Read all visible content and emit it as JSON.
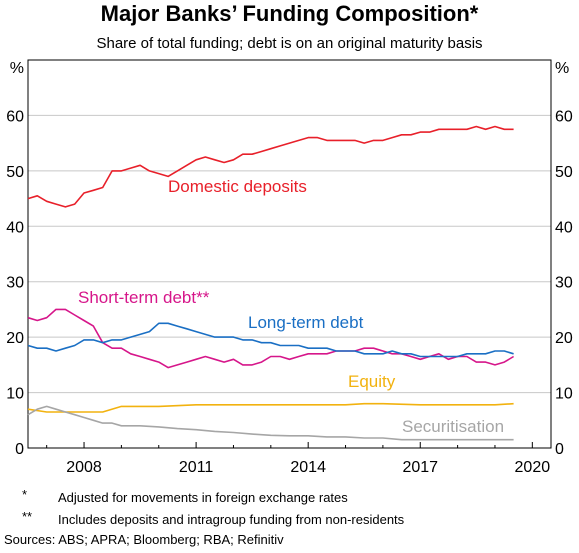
{
  "title": "Major Banks’ Funding Composition*",
  "subtitle": "Share of total funding; debt is on an original maturity basis",
  "footnotes": [
    {
      "mark": "*",
      "text": "Adjusted for movements in foreign exchange rates"
    },
    {
      "mark": "**",
      "text": "Includes deposits and intragroup funding from non-residents"
    }
  ],
  "sources": "Sources: ABS; APRA; Bloomberg; RBA; Refinitiv",
  "chart_data": {
    "type": "line",
    "title": "Major Banks’ Funding Composition*",
    "ylabel_left": "%",
    "ylabel_right": "%",
    "xlim": [
      2006.5,
      2020.5
    ],
    "ylim": [
      0,
      70
    ],
    "x_ticks": [
      2008,
      2011,
      2014,
      2017,
      2020
    ],
    "y_ticks": [
      0,
      10,
      20,
      30,
      40,
      50,
      60
    ],
    "grid": true,
    "series": [
      {
        "name": "Domestic deposits",
        "color": "#e8202a",
        "x": [
          2006.5,
          2006.75,
          2007.0,
          2007.25,
          2007.5,
          2007.75,
          2008.0,
          2008.25,
          2008.5,
          2008.75,
          2009.0,
          2009.25,
          2009.5,
          2009.75,
          2010.0,
          2010.25,
          2010.5,
          2010.75,
          2011.0,
          2011.25,
          2011.5,
          2011.75,
          2012.0,
          2012.25,
          2012.5,
          2012.75,
          2013.0,
          2013.25,
          2013.5,
          2013.75,
          2014.0,
          2014.25,
          2014.5,
          2014.75,
          2015.0,
          2015.25,
          2015.5,
          2015.75,
          2016.0,
          2016.25,
          2016.5,
          2016.75,
          2017.0,
          2017.25,
          2017.5,
          2017.75,
          2018.0,
          2018.25,
          2018.5,
          2018.75,
          2019.0,
          2019.25,
          2019.5
        ],
        "values": [
          45,
          45.5,
          44.5,
          44,
          43.5,
          44,
          46,
          46.5,
          47,
          50,
          50,
          50.5,
          51,
          50,
          49.5,
          49,
          50,
          51,
          52,
          52.5,
          52,
          51.5,
          52,
          53,
          53,
          53.5,
          54,
          54.5,
          55,
          55.5,
          56,
          56,
          55.5,
          55.5,
          55.5,
          55.5,
          55,
          55.5,
          55.5,
          56,
          56.5,
          56.5,
          57,
          57,
          57.5,
          57.5,
          57.5,
          57.5,
          58,
          57.5,
          58,
          57.5,
          57.5
        ]
      },
      {
        "name": "Short-term debt**",
        "color": "#d6168a",
        "x": [
          2006.5,
          2006.75,
          2007.0,
          2007.25,
          2007.5,
          2007.75,
          2008.0,
          2008.25,
          2008.5,
          2008.75,
          2009.0,
          2009.25,
          2009.5,
          2009.75,
          2010.0,
          2010.25,
          2010.5,
          2010.75,
          2011.0,
          2011.25,
          2011.5,
          2011.75,
          2012.0,
          2012.25,
          2012.5,
          2012.75,
          2013.0,
          2013.25,
          2013.5,
          2013.75,
          2014.0,
          2014.25,
          2014.5,
          2014.75,
          2015.0,
          2015.25,
          2015.5,
          2015.75,
          2016.0,
          2016.25,
          2016.5,
          2016.75,
          2017.0,
          2017.25,
          2017.5,
          2017.75,
          2018.0,
          2018.25,
          2018.5,
          2018.75,
          2019.0,
          2019.25,
          2019.5
        ],
        "values": [
          23.5,
          23,
          23.5,
          25,
          25,
          24,
          23,
          22,
          19,
          18,
          18,
          17,
          16.5,
          16,
          15.5,
          14.5,
          15,
          15.5,
          16,
          16.5,
          16,
          15.5,
          16,
          15,
          15,
          15.5,
          16.5,
          16.5,
          16,
          16.5,
          17,
          17,
          17,
          17.5,
          17.5,
          17.5,
          18,
          18,
          17.5,
          17,
          17,
          16.5,
          16,
          16.5,
          17,
          16,
          16.5,
          16.5,
          15.5,
          15.5,
          15,
          15.5,
          16.5
        ]
      },
      {
        "name": "Long-term debt",
        "color": "#1a6fc4",
        "x": [
          2006.5,
          2006.75,
          2007.0,
          2007.25,
          2007.5,
          2007.75,
          2008.0,
          2008.25,
          2008.5,
          2008.75,
          2009.0,
          2009.25,
          2009.5,
          2009.75,
          2010.0,
          2010.25,
          2010.5,
          2010.75,
          2011.0,
          2011.25,
          2011.5,
          2011.75,
          2012.0,
          2012.25,
          2012.5,
          2012.75,
          2013.0,
          2013.25,
          2013.5,
          2013.75,
          2014.0,
          2014.25,
          2014.5,
          2014.75,
          2015.0,
          2015.25,
          2015.5,
          2015.75,
          2016.0,
          2016.25,
          2016.5,
          2016.75,
          2017.0,
          2017.25,
          2017.5,
          2017.75,
          2018.0,
          2018.25,
          2018.5,
          2018.75,
          2019.0,
          2019.25,
          2019.5
        ],
        "values": [
          18.5,
          18,
          18,
          17.5,
          18,
          18.5,
          19.5,
          19.5,
          19,
          19.5,
          19.5,
          20,
          20.5,
          21,
          22.5,
          22.5,
          22,
          21.5,
          21,
          20.5,
          20,
          20,
          20,
          19.5,
          19.5,
          19,
          19,
          18.5,
          18.5,
          18.5,
          18,
          18,
          18,
          17.5,
          17.5,
          17.5,
          17,
          17,
          17,
          17.5,
          17,
          17,
          16.5,
          16.5,
          16.5,
          16.5,
          16.5,
          17,
          17,
          17,
          17.5,
          17.5,
          17
        ]
      },
      {
        "name": "Equity",
        "color": "#f2b20f",
        "x": [
          2006.5,
          2007.0,
          2007.5,
          2008.0,
          2008.5,
          2009.0,
          2009.5,
          2010.0,
          2011.0,
          2012.0,
          2013.0,
          2014.0,
          2015.0,
          2015.5,
          2016.0,
          2017.0,
          2018.0,
          2019.0,
          2019.5
        ],
        "values": [
          7,
          6.5,
          6.5,
          6.5,
          6.5,
          7.5,
          7.5,
          7.5,
          7.8,
          7.8,
          7.8,
          7.8,
          7.8,
          8,
          8,
          7.8,
          7.8,
          7.8,
          8
        ]
      },
      {
        "name": "Securitisation",
        "color": "#a6a6a6",
        "x": [
          2006.5,
          2006.75,
          2007.0,
          2007.25,
          2007.5,
          2007.75,
          2008.0,
          2008.25,
          2008.5,
          2008.75,
          2009.0,
          2009.5,
          2010.0,
          2010.5,
          2011.0,
          2011.5,
          2012.0,
          2012.5,
          2013.0,
          2013.5,
          2014.0,
          2014.5,
          2015.0,
          2015.5,
          2016.0,
          2016.5,
          2017.0,
          2017.5,
          2018.0,
          2018.5,
          2019.0,
          2019.5
        ],
        "values": [
          6,
          7,
          7.5,
          7,
          6.5,
          6,
          5.5,
          5,
          4.5,
          4.5,
          4,
          4,
          3.8,
          3.5,
          3.3,
          3,
          2.8,
          2.5,
          2.3,
          2.2,
          2.2,
          2,
          2,
          1.8,
          1.8,
          1.5,
          1.5,
          1.5,
          1.5,
          1.5,
          1.5,
          1.5
        ]
      }
    ],
    "annotations": [
      {
        "series": "Domestic deposits",
        "text": "Domestic deposits",
        "color": "#e8202a"
      },
      {
        "series": "Short-term debt**",
        "text": "Short-term debt**",
        "color": "#d6168a"
      },
      {
        "series": "Long-term debt",
        "text": "Long-term debt",
        "color": "#1a6fc4"
      },
      {
        "series": "Equity",
        "text": "Equity",
        "color": "#f2b20f"
      },
      {
        "series": "Securitisation",
        "text": "Securitisation",
        "color": "#a6a6a6"
      }
    ]
  }
}
